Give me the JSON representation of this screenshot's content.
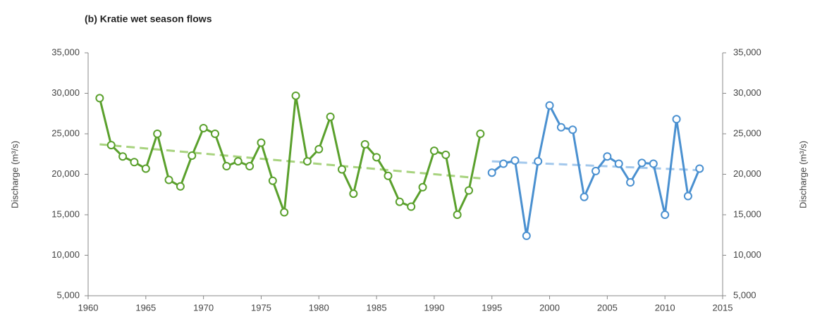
{
  "chart_data": {
    "type": "line",
    "title": "(b) Kratie wet season flows",
    "ylabel": "Discharge (m³/s)",
    "y2label": "Discharge (m³/s)",
    "xlim": [
      1960,
      2015
    ],
    "xticks": [
      1960,
      1965,
      1970,
      1975,
      1980,
      1985,
      1990,
      1995,
      2000,
      2005,
      2010,
      2015
    ],
    "ylim": [
      5000,
      35000
    ],
    "yticks": [
      {
        "value": 5000,
        "label": "5,000"
      },
      {
        "value": 10000,
        "label": "10,000"
      },
      {
        "value": 15000,
        "label": "15,000"
      },
      {
        "value": 20000,
        "label": "20,000"
      },
      {
        "value": 25000,
        "label": "25,000"
      },
      {
        "value": 30000,
        "label": "30,000"
      },
      {
        "value": 35000,
        "label": "35,000"
      }
    ],
    "y2lim": [
      5000,
      35000
    ],
    "y2ticks": [
      {
        "value": 5000,
        "label": "5,000"
      },
      {
        "value": 10000,
        "label": "10,000"
      },
      {
        "value": 15000,
        "label": "15,000"
      },
      {
        "value": 20000,
        "label": "20,000"
      },
      {
        "value": 25000,
        "label": "25,000"
      },
      {
        "value": 30000,
        "label": "30,000"
      },
      {
        "value": 35000,
        "label": "35,000"
      }
    ],
    "series": [
      {
        "color": "#5aa02c",
        "x": [
          1961,
          1962,
          1963,
          1964,
          1965,
          1966,
          1967,
          1968,
          1969,
          1970,
          1971,
          1972,
          1973,
          1974,
          1975,
          1976,
          1977,
          1978,
          1979,
          1980,
          1981,
          1982,
          1983,
          1984,
          1985,
          1986,
          1987,
          1988,
          1989,
          1990,
          1991,
          1992,
          1993,
          1994
        ],
        "values": [
          29400,
          23600,
          22200,
          21500,
          20700,
          25000,
          19300,
          18500,
          22300,
          25700,
          25000,
          21000,
          21600,
          21000,
          23900,
          19200,
          15300,
          29700,
          21600,
          23100,
          27100,
          20600,
          17600,
          23700,
          22100,
          19800,
          16600,
          16000,
          18400,
          22900,
          22400,
          15000,
          18000,
          25000
        ]
      },
      {
        "color": "#4a90d0",
        "axis": "y2",
        "x": [
          1995,
          1996,
          1997,
          1998,
          1999,
          2000,
          2001,
          2002,
          2003,
          2004,
          2005,
          2006,
          2007,
          2008,
          2009,
          2010,
          2011,
          2012,
          2013
        ],
        "values": [
          20200,
          21300,
          21700,
          12400,
          21600,
          28500,
          25800,
          25500,
          17200,
          20400,
          22200,
          21300,
          19000,
          21400,
          21300,
          15000,
          26800,
          17300,
          20700
        ]
      }
    ],
    "trendlines": [
      {
        "color": "#a8d37f",
        "style": "dashed",
        "x": [
          1961,
          1994
        ],
        "values": [
          23700,
          19500
        ]
      },
      {
        "color": "#a3c8ec",
        "style": "dashed",
        "axis": "y2",
        "x": [
          1995,
          2013
        ],
        "values": [
          21600,
          20500
        ]
      }
    ]
  }
}
